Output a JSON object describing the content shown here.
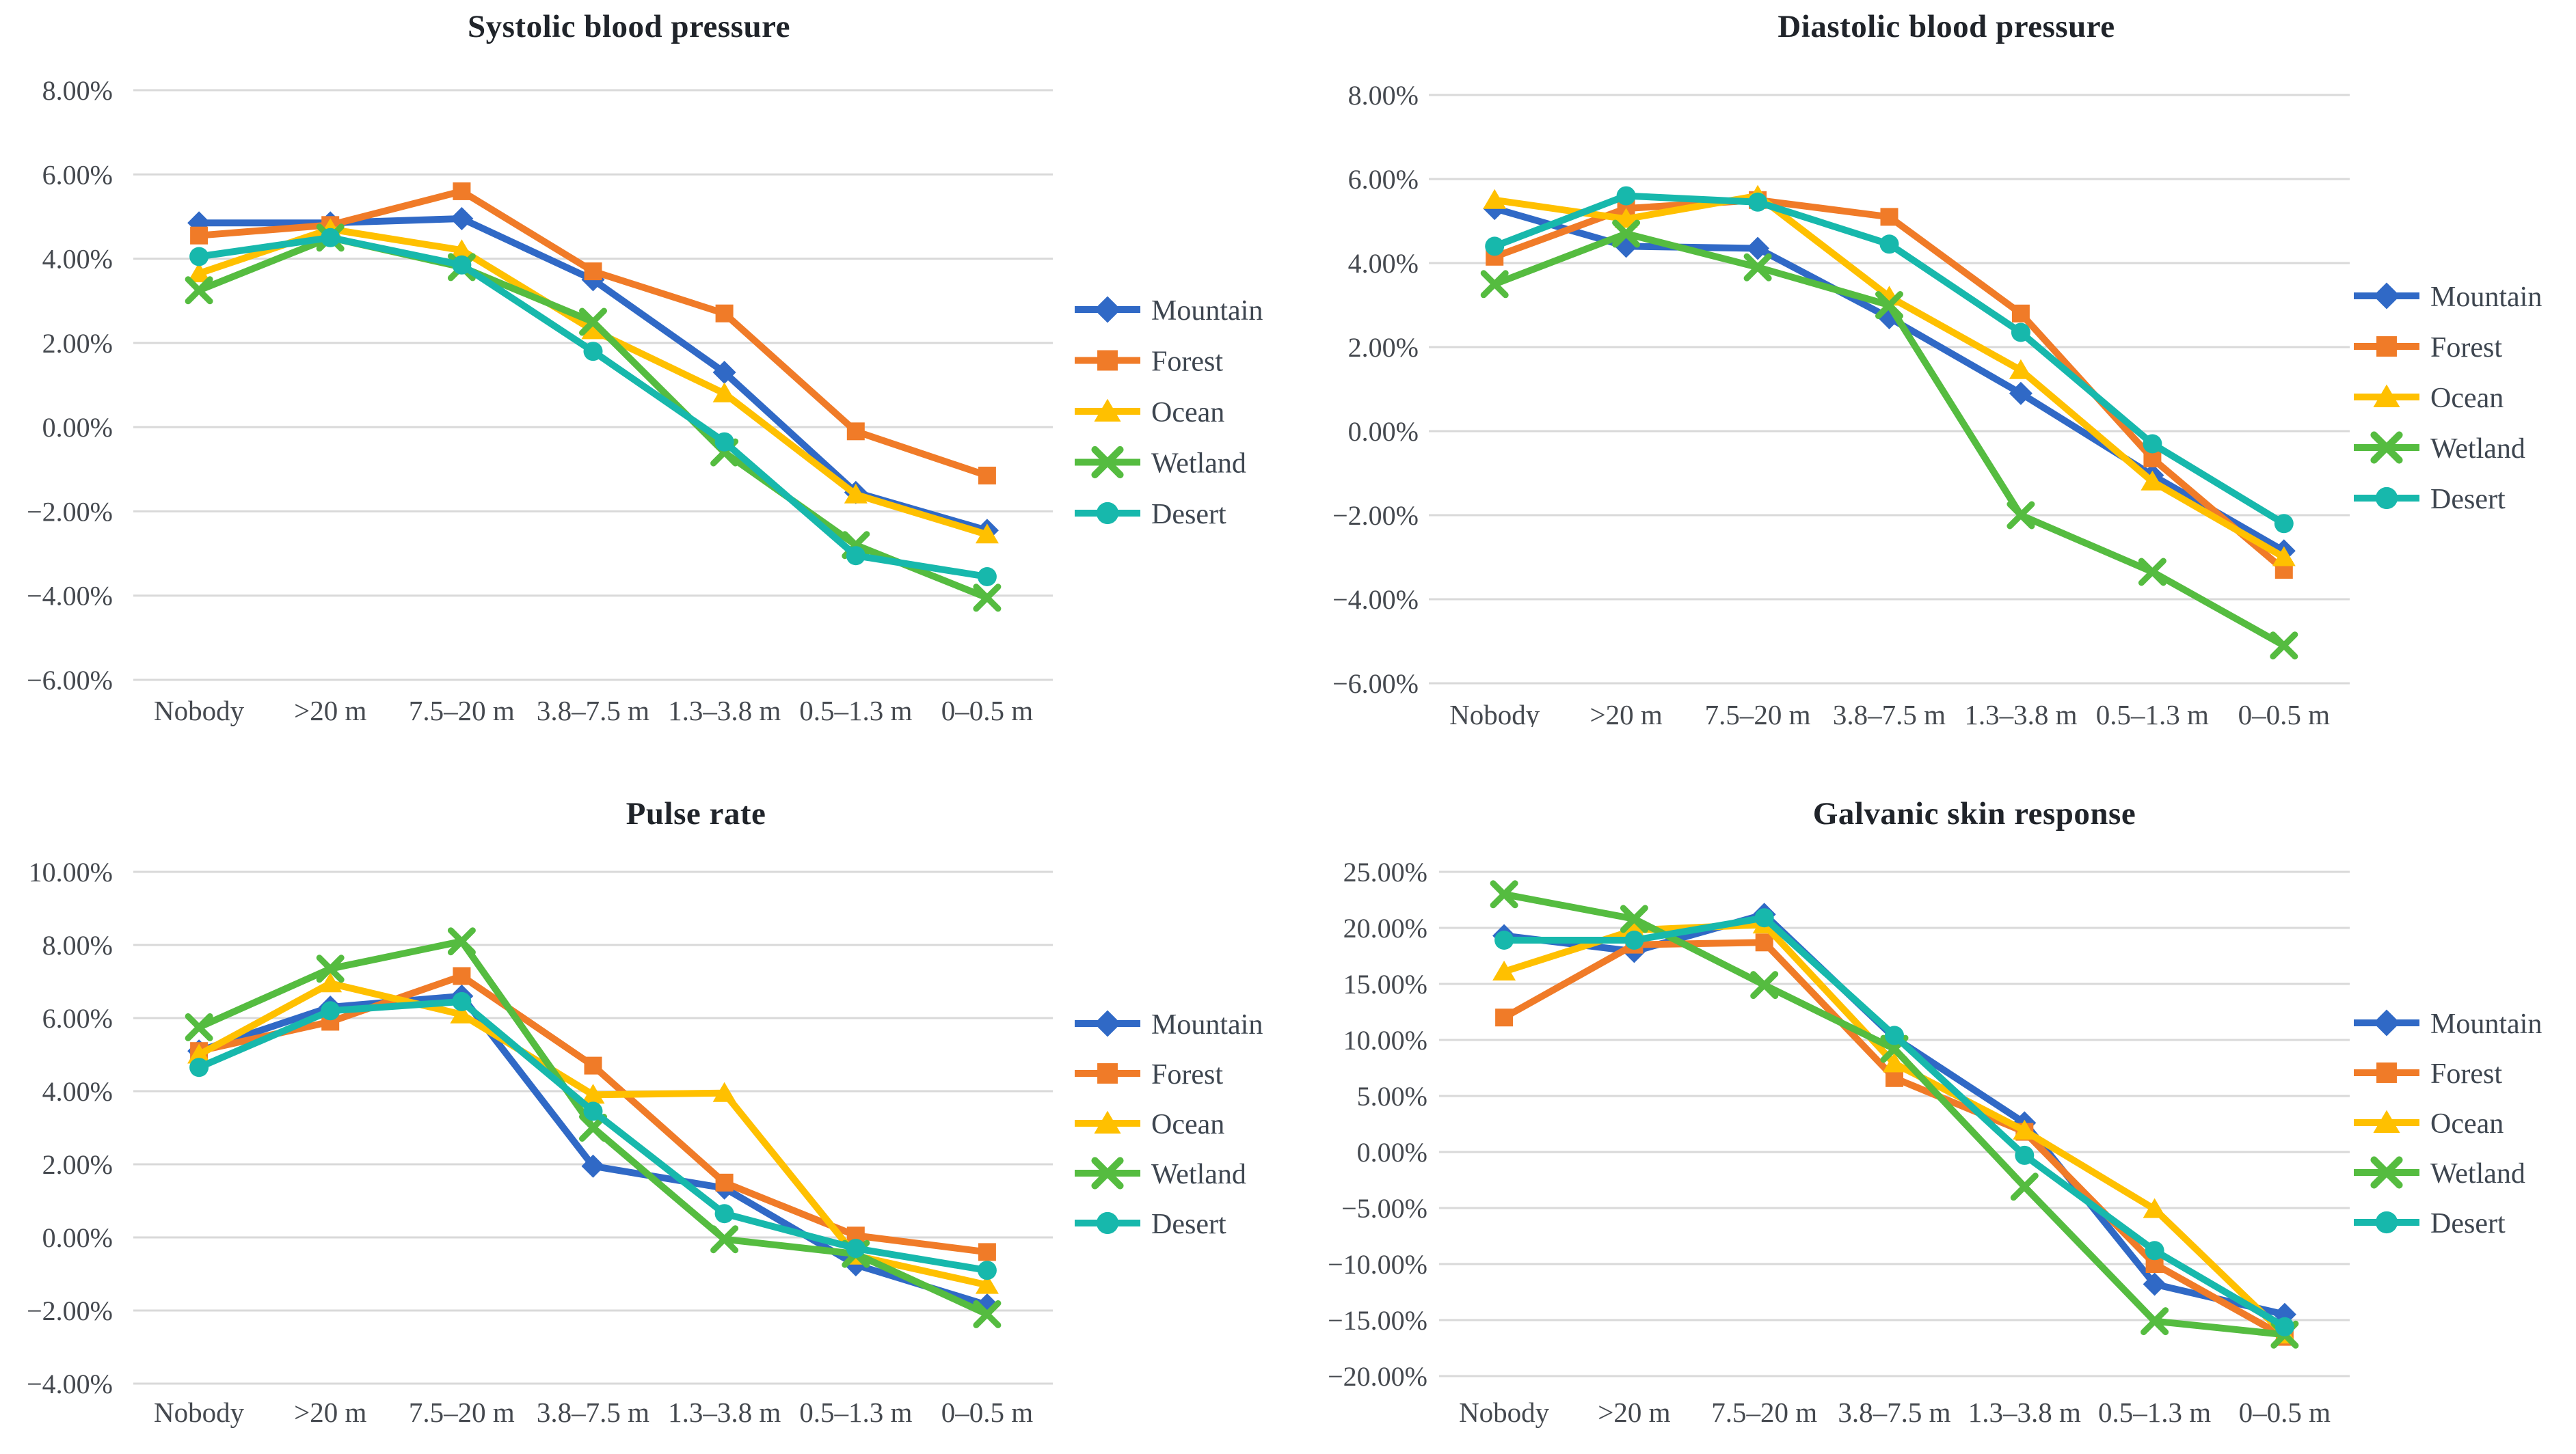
{
  "style": {
    "background": "#FFFFFF",
    "grid_color": "#D9D9D9",
    "axis_text_color": "#45494F",
    "legend_text_color": "#3E4650",
    "title_color": "#20242A"
  },
  "chart_data": [
    {
      "id": "systolic",
      "type": "line",
      "title": "Systolic blood pressure",
      "categories": [
        "Nobody",
        ">20 m",
        "7.5–20 m",
        "3.8–7.5 m",
        "1.3–3.8 m",
        "0.5–1.3 m",
        "0–0.5 m"
      ],
      "xlabel": "",
      "ylabel": "",
      "ylim": [
        -6,
        8
      ],
      "ystep": 2,
      "ytick_labels": [
        "8.00%",
        "6.00%",
        "4.00%",
        "2.00%",
        "0.00%",
        "−2.00%",
        "−4.00%",
        "−6.00%"
      ],
      "grid": true,
      "legend_position": "right",
      "series": [
        {
          "name": "Mountain",
          "marker": "diamond",
          "color": "#3069C6",
          "values": [
            4.85,
            4.85,
            4.95,
            3.5,
            1.3,
            -1.55,
            -2.45
          ]
        },
        {
          "name": "Forest",
          "marker": "square",
          "color": "#F07B28",
          "values": [
            4.55,
            4.8,
            5.6,
            3.7,
            2.7,
            -0.1,
            -1.15
          ]
        },
        {
          "name": "Ocean",
          "marker": "triangle",
          "color": "#FFC000",
          "values": [
            3.65,
            4.7,
            4.2,
            2.3,
            0.8,
            -1.6,
            -2.55
          ]
        },
        {
          "name": "Wetland",
          "marker": "x",
          "color": "#55BC40",
          "values": [
            3.25,
            4.5,
            3.8,
            2.5,
            -0.6,
            -2.8,
            -4.05
          ]
        },
        {
          "name": "Desert",
          "marker": "circle",
          "color": "#17B8AC",
          "values": [
            4.05,
            4.5,
            3.85,
            1.8,
            -0.35,
            -3.05,
            -3.55
          ]
        }
      ]
    },
    {
      "id": "diastolic",
      "type": "line",
      "title": "Diastolic blood pressure",
      "categories": [
        "Nobody",
        ">20 m",
        "7.5–20 m",
        "3.8–7.5 m",
        "1.3–3.8 m",
        "0.5–1.3 m",
        "0–0.5 m"
      ],
      "xlabel": "",
      "ylabel": "",
      "ylim": [
        -6,
        8
      ],
      "ystep": 2,
      "ytick_labels": [
        "8.00%",
        "6.00%",
        "4.00%",
        "2.00%",
        "0.00%",
        "−2.00%",
        "−4.00%",
        "−6.00%"
      ],
      "grid": true,
      "legend_position": "right",
      "series": [
        {
          "name": "Mountain",
          "marker": "diamond",
          "color": "#3069C6",
          "values": [
            5.3,
            4.4,
            4.35,
            2.7,
            0.9,
            -1.05,
            -2.85
          ]
        },
        {
          "name": "Forest",
          "marker": "square",
          "color": "#F07B28",
          "values": [
            4.15,
            5.3,
            5.5,
            5.1,
            2.8,
            -0.65,
            -3.3
          ]
        },
        {
          "name": "Ocean",
          "marker": "triangle",
          "color": "#FFC000",
          "values": [
            5.5,
            5.05,
            5.6,
            3.2,
            1.45,
            -1.2,
            -3.0
          ]
        },
        {
          "name": "Wetland",
          "marker": "x",
          "color": "#55BC40",
          "values": [
            3.5,
            4.7,
            3.9,
            3.0,
            -2.0,
            -3.35,
            -5.1
          ]
        },
        {
          "name": "Desert",
          "marker": "circle",
          "color": "#17B8AC",
          "values": [
            4.4,
            5.6,
            5.45,
            4.45,
            2.35,
            -0.3,
            -2.2
          ]
        }
      ]
    },
    {
      "id": "pulse",
      "type": "line",
      "title": "Pulse rate",
      "categories": [
        "Nobody",
        ">20 m",
        "7.5–20 m",
        "3.8–7.5 m",
        "1.3–3.8 m",
        "0.5–1.3 m",
        "0–0.5 m"
      ],
      "xlabel": "",
      "ylabel": "",
      "ylim": [
        -4,
        10
      ],
      "ystep": 2,
      "ytick_labels": [
        "10.00%",
        "8.00%",
        "6.00%",
        "4.00%",
        "2.00%",
        "0.00%",
        "−2.00%",
        "−4.00%"
      ],
      "grid": true,
      "legend_position": "right",
      "series": [
        {
          "name": "Mountain",
          "marker": "diamond",
          "color": "#3069C6",
          "values": [
            5.1,
            6.3,
            6.6,
            1.95,
            1.35,
            -0.75,
            -1.85
          ]
        },
        {
          "name": "Forest",
          "marker": "square",
          "color": "#F07B28",
          "values": [
            5.1,
            5.9,
            7.15,
            4.7,
            1.5,
            0.05,
            -0.4
          ]
        },
        {
          "name": "Ocean",
          "marker": "triangle",
          "color": "#FFC000",
          "values": [
            5.0,
            6.95,
            6.1,
            3.9,
            3.95,
            -0.5,
            -1.3
          ]
        },
        {
          "name": "Wetland",
          "marker": "x",
          "color": "#55BC40",
          "values": [
            5.75,
            7.35,
            8.1,
            3.0,
            -0.05,
            -0.45,
            -2.1
          ]
        },
        {
          "name": "Desert",
          "marker": "circle",
          "color": "#17B8AC",
          "values": [
            4.65,
            6.2,
            6.45,
            3.45,
            0.65,
            -0.3,
            -0.9
          ]
        }
      ]
    },
    {
      "id": "galvanic",
      "type": "line",
      "title": "Galvanic skin response",
      "categories": [
        "Nobody",
        ">20 m",
        "7.5–20 m",
        "3.8–7.5 m",
        "1.3–3.8 m",
        "0.5–1.3 m",
        "0–0.5 m"
      ],
      "xlabel": "",
      "ylabel": "",
      "ylim": [
        -20,
        25
      ],
      "ystep": 5,
      "ytick_labels": [
        "25.00%",
        "20.00%",
        "15.00%",
        "10.00%",
        "5.00%",
        "0.00%",
        "−5.00%",
        "−10.00%",
        "−15.00%",
        "−20.00%"
      ],
      "grid": true,
      "legend_position": "right",
      "series": [
        {
          "name": "Mountain",
          "marker": "diamond",
          "color": "#3069C6",
          "values": [
            19.3,
            17.9,
            21.2,
            10.2,
            2.6,
            -11.8,
            -14.5
          ]
        },
        {
          "name": "Forest",
          "marker": "square",
          "color": "#F07B28",
          "values": [
            12.0,
            18.5,
            18.7,
            6.6,
            1.8,
            -10.0,
            -16.5
          ]
        },
        {
          "name": "Ocean",
          "marker": "triangle",
          "color": "#FFC000",
          "values": [
            16.1,
            19.8,
            20.3,
            7.9,
            1.9,
            -5.1,
            -16.3
          ]
        },
        {
          "name": "Wetland",
          "marker": "x",
          "color": "#55BC40",
          "values": [
            23.0,
            20.8,
            14.9,
            9.2,
            -3.1,
            -15.1,
            -16.3
          ]
        },
        {
          "name": "Desert",
          "marker": "circle",
          "color": "#17B8AC",
          "values": [
            18.9,
            18.9,
            20.9,
            10.4,
            -0.3,
            -8.8,
            -15.6
          ]
        }
      ]
    }
  ]
}
